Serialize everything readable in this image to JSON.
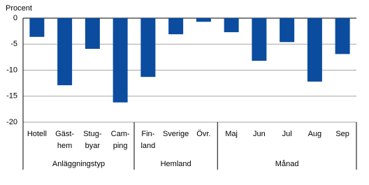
{
  "chart_data": {
    "type": "bar",
    "y_label": "Procent",
    "color": "#0b4c9f",
    "ylim": [
      -20,
      0
    ],
    "yticks": [
      0,
      -5,
      -10,
      -15,
      -20
    ],
    "grid": true,
    "groups": [
      {
        "name": "Anläggningstyp",
        "categories": [
          "Hotell",
          "Gäst-\nhem",
          "Stug-\nbyar",
          "Cam-\nping"
        ],
        "values": [
          -3.6,
          -12.9,
          -5.9,
          -16.2
        ]
      },
      {
        "name": "Hemland",
        "categories": [
          "Fin-\nland",
          "Sverige",
          "Övr."
        ],
        "values": [
          -11.3,
          -3.1,
          -0.7
        ]
      },
      {
        "name": "Månad",
        "categories": [
          "Maj",
          "Jun",
          "Jul",
          "Aug",
          "Sep"
        ],
        "values": [
          -2.7,
          -8.2,
          -4.6,
          -12.2,
          -6.9
        ]
      }
    ]
  }
}
